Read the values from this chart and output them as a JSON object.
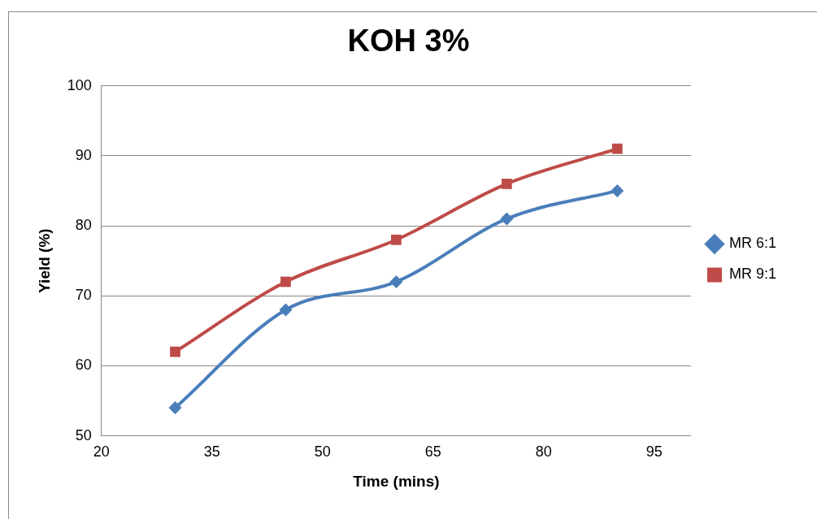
{
  "chart_data": {
    "type": "line",
    "title": "KOH 3%",
    "xlabel": "Time (mins)",
    "ylabel": "Yield (%)",
    "x": [
      30,
      45,
      60,
      75,
      90
    ],
    "series": [
      {
        "name": "MR 6:1",
        "color": "#4a7ebb",
        "marker": "diamond",
        "values": [
          54,
          68,
          72,
          81,
          85
        ]
      },
      {
        "name": "MR 9:1",
        "color": "#be4b48",
        "marker": "square",
        "values": [
          62,
          72,
          78,
          86,
          91
        ]
      }
    ],
    "xlim": [
      20,
      100
    ],
    "xticks": [
      20,
      35,
      50,
      65,
      80,
      95
    ],
    "ylim": [
      50,
      100
    ],
    "yticks": [
      50,
      60,
      70,
      80,
      90,
      100
    ],
    "grid": "y",
    "legend": "right"
  }
}
